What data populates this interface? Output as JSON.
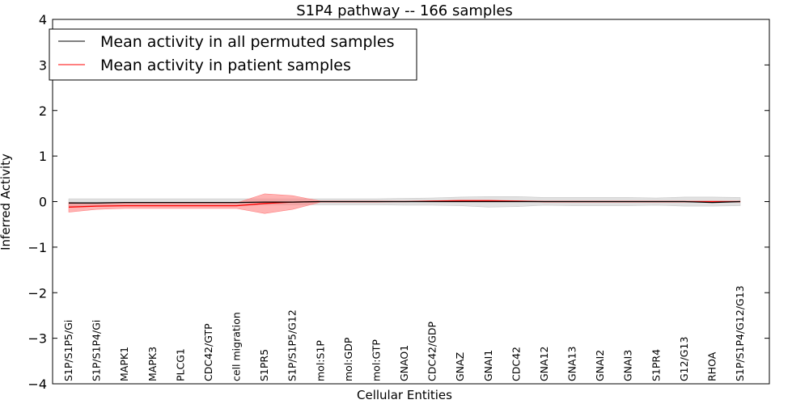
{
  "chart_data": {
    "type": "line",
    "title": "S1P4 pathway -- 166 samples",
    "xlabel": "Cellular Entities",
    "ylabel": "Inferred Activity",
    "ylim": [
      -4,
      4
    ],
    "yticks": [
      -4,
      -3,
      -2,
      -1,
      0,
      1,
      2,
      3,
      4
    ],
    "ytick_labels": [
      "−4",
      "−3",
      "−2",
      "−1",
      "0",
      "1",
      "2",
      "3",
      "4"
    ],
    "legend_position": "top-left",
    "categories": [
      "S1P/S1P5/Gi",
      "S1P/S1P4/Gi",
      "MAPK1",
      "MAPK3",
      "PLCG1",
      "CDC42/GTP",
      "cell migration",
      "S1PR5",
      "S1P/S1P5/G12",
      "mol:S1P",
      "mol:GDP",
      "mol:GTP",
      "GNAO1",
      "CDC42/GDP",
      "GNAZ",
      "GNAI1",
      "CDC42",
      "GNA12",
      "GNA13",
      "GNAI2",
      "GNAI3",
      "S1PR4",
      "G12/G13",
      "RHOA",
      "S1P/S1P4/G12/G13"
    ],
    "series": [
      {
        "name": "Mean activity in all permuted samples",
        "color": "#000000",
        "band_color": "#c8c8c8",
        "values": [
          -0.03,
          -0.03,
          -0.02,
          -0.02,
          -0.02,
          -0.02,
          -0.02,
          -0.01,
          -0.01,
          0.0,
          0.0,
          0.0,
          0.0,
          0.0,
          0.0,
          0.0,
          0.0,
          0.0,
          0.0,
          0.0,
          0.0,
          0.0,
          0.0,
          -0.02,
          0.0
        ],
        "lower": [
          -0.1,
          -0.09,
          -0.09,
          -0.09,
          -0.09,
          -0.09,
          -0.09,
          -0.07,
          -0.07,
          -0.07,
          -0.07,
          -0.07,
          -0.08,
          -0.08,
          -0.09,
          -0.12,
          -0.11,
          -0.08,
          -0.09,
          -0.09,
          -0.09,
          -0.08,
          -0.1,
          -0.1,
          -0.09
        ],
        "upper": [
          0.06,
          0.06,
          0.06,
          0.06,
          0.06,
          0.06,
          0.06,
          0.06,
          0.06,
          0.06,
          0.06,
          0.06,
          0.07,
          0.08,
          0.1,
          0.11,
          0.11,
          0.09,
          0.09,
          0.09,
          0.09,
          0.08,
          0.1,
          0.1,
          0.09
        ]
      },
      {
        "name": "Mean activity in patient samples",
        "color": "#ff0000",
        "band_color": "#ff8080",
        "values": [
          -0.12,
          -0.1,
          -0.09,
          -0.09,
          -0.09,
          -0.09,
          -0.09,
          -0.04,
          -0.01,
          0.0,
          0.0,
          0.0,
          0.0,
          0.01,
          0.02,
          0.02,
          0.01,
          0.0,
          0.0,
          0.0,
          0.0,
          0.0,
          0.0,
          0.0,
          0.0
        ],
        "lower": [
          -0.23,
          -0.17,
          -0.15,
          -0.15,
          -0.15,
          -0.15,
          -0.15,
          -0.26,
          -0.17,
          -0.01,
          -0.01,
          -0.01,
          0.0,
          0.0,
          0.01,
          0.01,
          0.0,
          -0.01,
          -0.01,
          -0.01,
          -0.01,
          -0.01,
          -0.01,
          -0.01,
          -0.01
        ],
        "upper": [
          -0.02,
          -0.03,
          -0.03,
          -0.03,
          -0.03,
          -0.03,
          -0.03,
          0.17,
          0.13,
          0.01,
          0.01,
          0.01,
          0.01,
          0.02,
          0.03,
          0.03,
          0.02,
          0.01,
          0.01,
          0.01,
          0.01,
          0.01,
          0.01,
          0.01,
          0.01
        ]
      }
    ]
  }
}
